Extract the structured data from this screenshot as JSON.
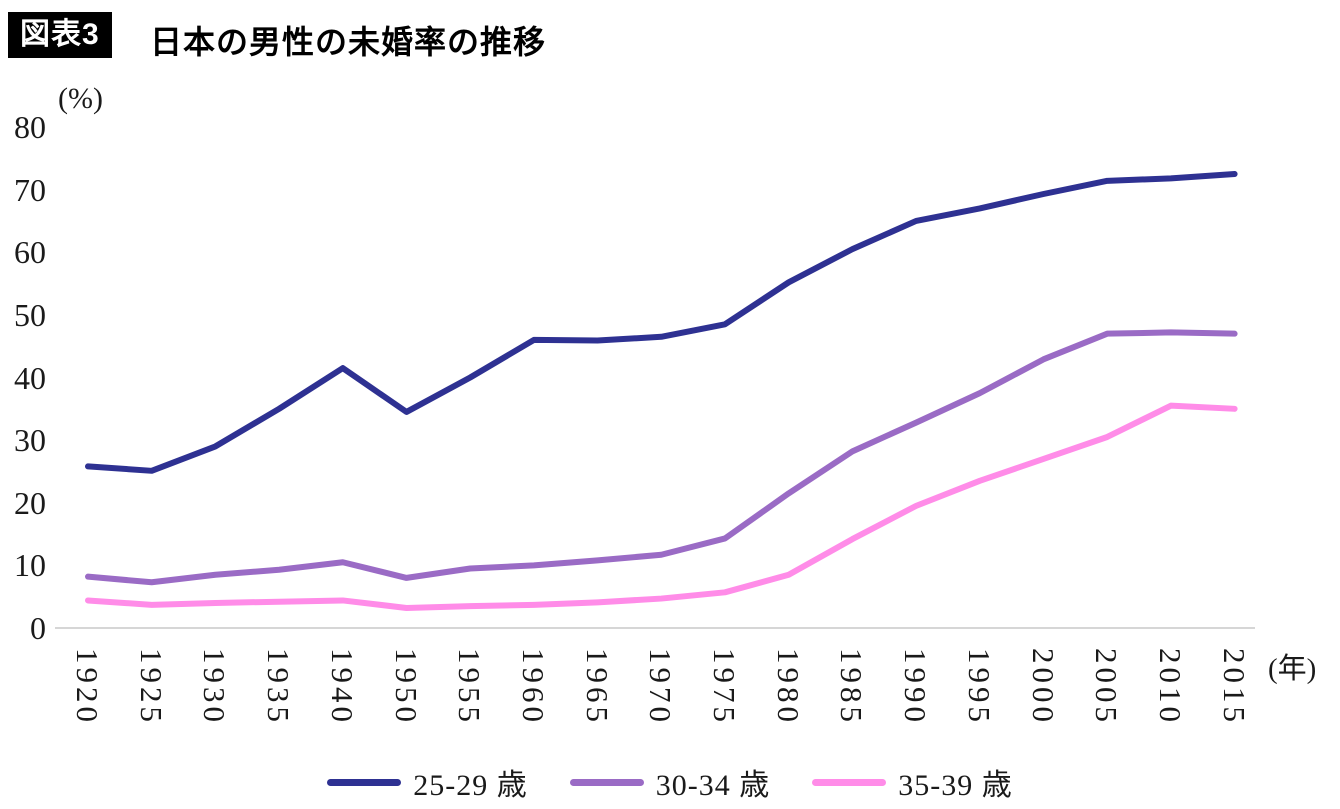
{
  "header": {
    "badge": "図表3",
    "title": "日本の男性の未婚率の推移"
  },
  "chart_data": {
    "type": "line",
    "title": "日本の男性の未婚率の推移",
    "ylabel": "(%)",
    "xlabel": "(年)",
    "ylim": [
      0,
      80
    ],
    "yticks": [
      0,
      10,
      20,
      30,
      40,
      50,
      60,
      70,
      80
    ],
    "grid": false,
    "legend_position": "bottom",
    "categories": [
      "1920",
      "1925",
      "1930",
      "1935",
      "1940",
      "1950",
      "1955",
      "1960",
      "1965",
      "1970",
      "1975",
      "1980",
      "1985",
      "1990",
      "1995",
      "2000",
      "2005",
      "2010",
      "2015"
    ],
    "series": [
      {
        "name": "25-29 歳",
        "color": "#2e3192",
        "values": [
          25.8,
          25.1,
          29.0,
          35.0,
          41.5,
          34.5,
          40.0,
          46.0,
          45.9,
          46.5,
          48.5,
          55.2,
          60.5,
          65.0,
          67.0,
          69.3,
          71.4,
          71.8,
          72.5
        ]
      },
      {
        "name": "30-34 歳",
        "color": "#9a6bc5",
        "values": [
          8.2,
          7.3,
          8.5,
          9.3,
          10.5,
          8.0,
          9.5,
          10.0,
          10.8,
          11.7,
          14.3,
          21.5,
          28.2,
          32.8,
          37.5,
          42.9,
          47.0,
          47.2,
          47.0
        ]
      },
      {
        "name": "35-39 歳",
        "color": "#ff8ce8",
        "values": [
          4.4,
          3.7,
          4.0,
          4.2,
          4.4,
          3.2,
          3.5,
          3.7,
          4.1,
          4.7,
          5.7,
          8.5,
          14.2,
          19.5,
          23.5,
          27.0,
          30.5,
          35.5,
          35.0
        ]
      }
    ]
  }
}
